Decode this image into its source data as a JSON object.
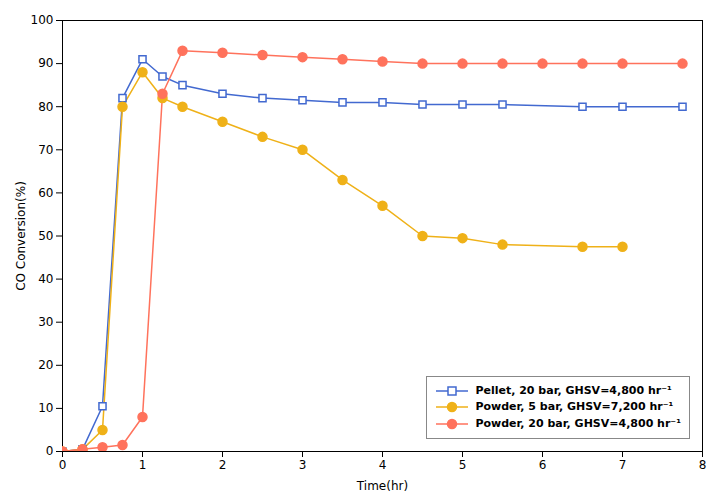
{
  "chart_data": {
    "type": "line",
    "xlabel": "Time(hr)",
    "ylabel": "CO Conversion(%)",
    "xlim": [
      0,
      8
    ],
    "ylim": [
      0,
      100
    ],
    "xticks": [
      0,
      1,
      2,
      3,
      4,
      5,
      6,
      7,
      8
    ],
    "yticks": [
      0,
      10,
      20,
      30,
      40,
      50,
      60,
      70,
      80,
      90,
      100
    ],
    "grid": false,
    "legend": "lower right",
    "series": [
      {
        "name": "Pellet, 20 bar, GHSV=4,800 hr⁻¹",
        "marker": "square",
        "x": [
          0.0,
          0.25,
          0.5,
          0.75,
          1.0,
          1.25,
          1.5,
          2.0,
          2.5,
          3.0,
          3.5,
          4.0,
          4.5,
          5.0,
          5.5,
          6.5,
          7.0,
          7.75
        ],
        "values": [
          0.0,
          0.5,
          10.5,
          82.0,
          91.0,
          87.0,
          85.0,
          83.0,
          82.0,
          81.5,
          81.0,
          81.0,
          80.5,
          80.5,
          80.5,
          80.0,
          80.0,
          80.0
        ]
      },
      {
        "name": "Powder, 5 bar, GHSV=7,200 hr⁻¹",
        "marker": "circle",
        "x": [
          0.0,
          0.25,
          0.5,
          0.75,
          1.0,
          1.25,
          1.5,
          2.0,
          2.5,
          3.0,
          3.5,
          4.0,
          4.5,
          5.0,
          5.5,
          6.5,
          7.0
        ],
        "values": [
          0.0,
          0.5,
          5.0,
          80.0,
          88.0,
          82.0,
          80.0,
          76.5,
          73.0,
          70.0,
          63.0,
          57.0,
          50.0,
          49.5,
          48.0,
          47.5,
          47.5
        ]
      },
      {
        "name": "Powder, 20 bar, GHSV=4,800 hr⁻¹",
        "marker": "circle",
        "x": [
          0.0,
          0.25,
          0.5,
          0.75,
          1.0,
          1.25,
          1.5,
          2.0,
          2.5,
          3.0,
          3.5,
          4.0,
          4.5,
          5.0,
          5.5,
          6.0,
          6.5,
          7.0,
          7.75
        ],
        "values": [
          0.0,
          0.5,
          1.0,
          1.5,
          8.0,
          83.0,
          93.0,
          92.5,
          92.0,
          91.5,
          91.0,
          90.5,
          90.0,
          90.0,
          90.0,
          90.0,
          90.0,
          90.0,
          90.0
        ]
      }
    ]
  }
}
